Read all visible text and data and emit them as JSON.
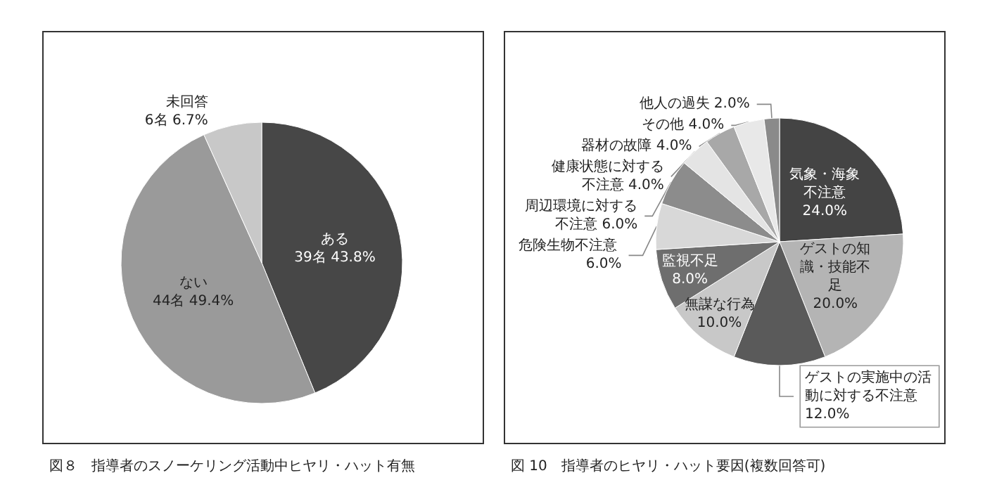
{
  "chart_data": [
    {
      "type": "pie",
      "title": "図８　指導者のスノーケリング活動中ヒヤリ・ハット有無",
      "categories": [
        "ある",
        "ない",
        "未回答"
      ],
      "values": [
        39,
        44,
        6
      ],
      "value_labels": [
        "39名 43.8%",
        "44名 49.4%",
        "6名 6.7%"
      ],
      "colors": [
        "#474747",
        "#9a9a9a",
        "#c8c8c8"
      ]
    },
    {
      "type": "pie",
      "title": "図 10　指導者のヒヤリ・ハット要因(複数回答可)",
      "categories": [
        "気象・海象不注意",
        "ゲストの知識・技能不足",
        "ゲストの実施中の活動に対する不注意",
        "無謀な行為",
        "監視不足",
        "危険生物不注意",
        "周辺環境に対する不注意",
        "健康状態に対する不注意",
        "器材の故障",
        "その他",
        "他人の過失"
      ],
      "values": [
        24,
        20,
        12,
        10,
        8,
        6,
        6,
        4,
        4,
        4,
        2
      ],
      "value_labels": [
        "24.0%",
        "20.0%",
        "12.0%",
        "10.0%",
        "8.0%",
        "6.0%",
        "6.0%",
        "4.0%",
        "4.0%",
        "4.0%",
        "2.0%"
      ],
      "colors": [
        "#444444",
        "#b4b4b4",
        "#5a5a5a",
        "#c8c8c8",
        "#6e6e6e",
        "#d8d8d8",
        "#8c8c8c",
        "#e4e4e4",
        "#a8a8a8",
        "#e8e8e8",
        "#8a8a8a"
      ]
    }
  ]
}
